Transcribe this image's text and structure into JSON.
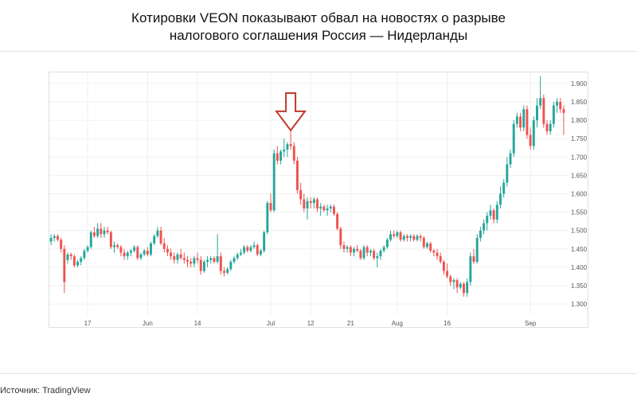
{
  "title_lines": [
    "Котировки VEON показывают обвал на новостях о разрыве",
    "налогового соглашения Россия — Нидерланды"
  ],
  "source": "Источник: TradingView",
  "colors": {
    "up": "#26a69a",
    "down": "#ef5350",
    "arrow": "#c0392b",
    "grid": "#f0f0f0"
  },
  "chart_data": {
    "type": "candlestick",
    "ylim": [
      1.27,
      1.93
    ],
    "y_ticks": [
      "1.300",
      "1.350",
      "1.400",
      "1.450",
      "1.500",
      "1.550",
      "1.600",
      "1.650",
      "1.700",
      "1.750",
      "1.800",
      "1.850",
      "1.900"
    ],
    "x_ticks": [
      {
        "label": "17",
        "index": 11
      },
      {
        "label": "Jun",
        "index": 29
      },
      {
        "label": "14",
        "index": 44
      },
      {
        "label": "Jul",
        "index": 66
      },
      {
        "label": "12",
        "index": 78
      },
      {
        "label": "21",
        "index": 90
      },
      {
        "label": "Aug",
        "index": 104
      },
      {
        "label": "16",
        "index": 119
      },
      {
        "label": "Sep",
        "index": 144
      }
    ],
    "annotation": {
      "type": "down-arrow",
      "index": 72
    },
    "ohlc": [
      [
        1.47,
        1.49,
        1.46,
        1.48
      ],
      [
        1.48,
        1.49,
        1.47,
        1.485
      ],
      [
        1.485,
        1.49,
        1.47,
        1.475
      ],
      [
        1.475,
        1.48,
        1.44,
        1.45
      ],
      [
        1.45,
        1.46,
        1.33,
        1.36
      ],
      [
        1.42,
        1.44,
        1.41,
        1.435
      ],
      [
        1.435,
        1.44,
        1.42,
        1.43
      ],
      [
        1.43,
        1.435,
        1.4,
        1.405
      ],
      [
        1.405,
        1.42,
        1.4,
        1.415
      ],
      [
        1.415,
        1.43,
        1.405,
        1.425
      ],
      [
        1.425,
        1.45,
        1.42,
        1.445
      ],
      [
        1.445,
        1.46,
        1.44,
        1.455
      ],
      [
        1.455,
        1.5,
        1.45,
        1.495
      ],
      [
        1.495,
        1.51,
        1.48,
        1.485
      ],
      [
        1.485,
        1.52,
        1.48,
        1.505
      ],
      [
        1.505,
        1.52,
        1.48,
        1.49
      ],
      [
        1.49,
        1.51,
        1.48,
        1.5
      ],
      [
        1.5,
        1.51,
        1.49,
        1.495
      ],
      [
        1.495,
        1.5,
        1.45,
        1.455
      ],
      [
        1.455,
        1.47,
        1.44,
        1.46
      ],
      [
        1.46,
        1.465,
        1.45,
        1.455
      ],
      [
        1.455,
        1.46,
        1.43,
        1.44
      ],
      [
        1.44,
        1.45,
        1.42,
        1.43
      ],
      [
        1.43,
        1.445,
        1.42,
        1.44
      ],
      [
        1.44,
        1.45,
        1.43,
        1.445
      ],
      [
        1.445,
        1.46,
        1.44,
        1.455
      ],
      [
        1.455,
        1.46,
        1.42,
        1.425
      ],
      [
        1.425,
        1.44,
        1.42,
        1.435
      ],
      [
        1.435,
        1.45,
        1.43,
        1.445
      ],
      [
        1.445,
        1.455,
        1.43,
        1.435
      ],
      [
        1.435,
        1.47,
        1.43,
        1.465
      ],
      [
        1.465,
        1.49,
        1.46,
        1.485
      ],
      [
        1.485,
        1.51,
        1.48,
        1.5
      ],
      [
        1.5,
        1.51,
        1.46,
        1.465
      ],
      [
        1.465,
        1.48,
        1.44,
        1.45
      ],
      [
        1.45,
        1.46,
        1.43,
        1.44
      ],
      [
        1.44,
        1.45,
        1.42,
        1.43
      ],
      [
        1.43,
        1.44,
        1.41,
        1.42
      ],
      [
        1.42,
        1.44,
        1.41,
        1.435
      ],
      [
        1.435,
        1.45,
        1.42,
        1.425
      ],
      [
        1.425,
        1.44,
        1.41,
        1.42
      ],
      [
        1.42,
        1.43,
        1.4,
        1.415
      ],
      [
        1.415,
        1.425,
        1.4,
        1.41
      ],
      [
        1.41,
        1.43,
        1.4,
        1.425
      ],
      [
        1.425,
        1.44,
        1.41,
        1.42
      ],
      [
        1.42,
        1.43,
        1.38,
        1.39
      ],
      [
        1.39,
        1.42,
        1.385,
        1.415
      ],
      [
        1.415,
        1.43,
        1.4,
        1.42
      ],
      [
        1.42,
        1.43,
        1.41,
        1.425
      ],
      [
        1.425,
        1.43,
        1.41,
        1.415
      ],
      [
        1.415,
        1.49,
        1.41,
        1.43
      ],
      [
        1.43,
        1.44,
        1.38,
        1.39
      ],
      [
        1.39,
        1.4,
        1.375,
        1.385
      ],
      [
        1.385,
        1.4,
        1.38,
        1.395
      ],
      [
        1.395,
        1.42,
        1.39,
        1.415
      ],
      [
        1.415,
        1.43,
        1.41,
        1.425
      ],
      [
        1.425,
        1.44,
        1.42,
        1.435
      ],
      [
        1.435,
        1.45,
        1.43,
        1.44
      ],
      [
        1.44,
        1.46,
        1.435,
        1.455
      ],
      [
        1.455,
        1.46,
        1.44,
        1.445
      ],
      [
        1.445,
        1.46,
        1.44,
        1.455
      ],
      [
        1.455,
        1.47,
        1.45,
        1.46
      ],
      [
        1.46,
        1.465,
        1.43,
        1.435
      ],
      [
        1.435,
        1.45,
        1.43,
        1.445
      ],
      [
        1.445,
        1.5,
        1.44,
        1.495
      ],
      [
        1.495,
        1.58,
        1.49,
        1.575
      ],
      [
        1.575,
        1.6,
        1.55,
        1.555
      ],
      [
        1.555,
        1.72,
        1.55,
        1.71
      ],
      [
        1.71,
        1.73,
        1.68,
        1.69
      ],
      [
        1.69,
        1.72,
        1.68,
        1.715
      ],
      [
        1.715,
        1.75,
        1.7,
        1.72
      ],
      [
        1.72,
        1.74,
        1.7,
        1.735
      ],
      [
        1.735,
        1.82,
        1.72,
        1.73
      ],
      [
        1.73,
        1.74,
        1.68,
        1.69
      ],
      [
        1.69,
        1.7,
        1.6,
        1.61
      ],
      [
        1.61,
        1.63,
        1.57,
        1.585
      ],
      [
        1.585,
        1.6,
        1.55,
        1.56
      ],
      [
        1.56,
        1.59,
        1.53,
        1.58
      ],
      [
        1.58,
        1.59,
        1.56,
        1.575
      ],
      [
        1.575,
        1.59,
        1.56,
        1.585
      ],
      [
        1.585,
        1.59,
        1.55,
        1.56
      ],
      [
        1.56,
        1.575,
        1.54,
        1.565
      ],
      [
        1.565,
        1.57,
        1.55,
        1.555
      ],
      [
        1.555,
        1.57,
        1.54,
        1.56
      ],
      [
        1.56,
        1.57,
        1.55,
        1.565
      ],
      [
        1.565,
        1.57,
        1.54,
        1.545
      ],
      [
        1.545,
        1.55,
        1.5,
        1.505
      ],
      [
        1.505,
        1.51,
        1.45,
        1.46
      ],
      [
        1.46,
        1.47,
        1.44,
        1.45
      ],
      [
        1.45,
        1.46,
        1.44,
        1.455
      ],
      [
        1.455,
        1.46,
        1.43,
        1.44
      ],
      [
        1.44,
        1.455,
        1.43,
        1.45
      ],
      [
        1.45,
        1.46,
        1.44,
        1.445
      ],
      [
        1.445,
        1.45,
        1.42,
        1.425
      ],
      [
        1.425,
        1.46,
        1.42,
        1.455
      ],
      [
        1.455,
        1.46,
        1.43,
        1.44
      ],
      [
        1.44,
        1.45,
        1.43,
        1.445
      ],
      [
        1.445,
        1.45,
        1.42,
        1.425
      ],
      [
        1.425,
        1.44,
        1.4,
        1.43
      ],
      [
        1.43,
        1.45,
        1.42,
        1.445
      ],
      [
        1.445,
        1.46,
        1.44,
        1.455
      ],
      [
        1.455,
        1.48,
        1.45,
        1.475
      ],
      [
        1.475,
        1.5,
        1.47,
        1.49
      ],
      [
        1.49,
        1.5,
        1.48,
        1.485
      ],
      [
        1.485,
        1.5,
        1.48,
        1.495
      ],
      [
        1.495,
        1.5,
        1.47,
        1.475
      ],
      [
        1.475,
        1.49,
        1.47,
        1.485
      ],
      [
        1.485,
        1.49,
        1.47,
        1.48
      ],
      [
        1.48,
        1.49,
        1.47,
        1.485
      ],
      [
        1.485,
        1.49,
        1.47,
        1.475
      ],
      [
        1.475,
        1.49,
        1.47,
        1.485
      ],
      [
        1.485,
        1.49,
        1.47,
        1.48
      ],
      [
        1.48,
        1.485,
        1.45,
        1.455
      ],
      [
        1.455,
        1.47,
        1.45,
        1.465
      ],
      [
        1.465,
        1.47,
        1.44,
        1.445
      ],
      [
        1.445,
        1.45,
        1.43,
        1.44
      ],
      [
        1.44,
        1.45,
        1.42,
        1.43
      ],
      [
        1.43,
        1.44,
        1.41,
        1.415
      ],
      [
        1.415,
        1.42,
        1.38,
        1.39
      ],
      [
        1.39,
        1.41,
        1.37,
        1.375
      ],
      [
        1.375,
        1.38,
        1.35,
        1.36
      ],
      [
        1.36,
        1.37,
        1.34,
        1.365
      ],
      [
        1.365,
        1.37,
        1.33,
        1.345
      ],
      [
        1.345,
        1.36,
        1.34,
        1.355
      ],
      [
        1.355,
        1.36,
        1.32,
        1.33
      ],
      [
        1.33,
        1.37,
        1.32,
        1.36
      ],
      [
        1.36,
        1.44,
        1.35,
        1.43
      ],
      [
        1.43,
        1.45,
        1.41,
        1.415
      ],
      [
        1.415,
        1.49,
        1.41,
        1.48
      ],
      [
        1.48,
        1.51,
        1.47,
        1.5
      ],
      [
        1.5,
        1.53,
        1.49,
        1.52
      ],
      [
        1.52,
        1.55,
        1.5,
        1.54
      ],
      [
        1.54,
        1.57,
        1.53,
        1.555
      ],
      [
        1.555,
        1.56,
        1.52,
        1.53
      ],
      [
        1.53,
        1.58,
        1.52,
        1.57
      ],
      [
        1.57,
        1.62,
        1.56,
        1.6
      ],
      [
        1.6,
        1.64,
        1.59,
        1.63
      ],
      [
        1.63,
        1.7,
        1.62,
        1.68
      ],
      [
        1.68,
        1.72,
        1.67,
        1.71
      ],
      [
        1.71,
        1.8,
        1.7,
        1.79
      ],
      [
        1.79,
        1.82,
        1.78,
        1.81
      ],
      [
        1.81,
        1.82,
        1.77,
        1.78
      ],
      [
        1.78,
        1.84,
        1.77,
        1.83
      ],
      [
        1.83,
        1.84,
        1.75,
        1.76
      ],
      [
        1.76,
        1.78,
        1.72,
        1.73
      ],
      [
        1.73,
        1.81,
        1.72,
        1.8
      ],
      [
        1.8,
        1.86,
        1.78,
        1.84
      ],
      [
        1.84,
        1.92,
        1.83,
        1.86
      ],
      [
        1.86,
        1.87,
        1.78,
        1.79
      ],
      [
        1.79,
        1.8,
        1.76,
        1.77
      ],
      [
        1.77,
        1.8,
        1.76,
        1.79
      ],
      [
        1.79,
        1.85,
        1.78,
        1.84
      ],
      [
        1.84,
        1.86,
        1.82,
        1.85
      ],
      [
        1.85,
        1.86,
        1.82,
        1.83
      ],
      [
        1.83,
        1.84,
        1.76,
        1.82
      ]
    ]
  }
}
